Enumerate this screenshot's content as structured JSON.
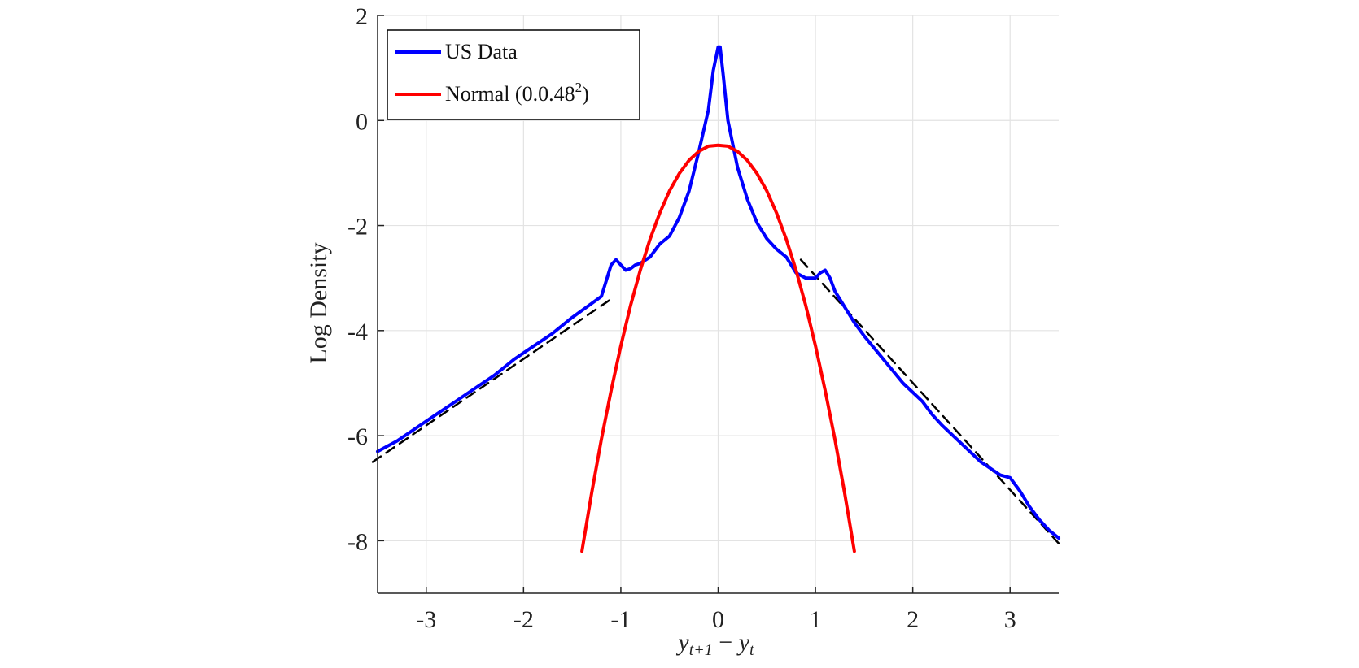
{
  "chart_data": {
    "type": "line",
    "xlabel": "y_{t+1} − y_t",
    "xlabel_parts": {
      "y1": "y",
      "sub1": "t+1",
      "minus": " − ",
      "y2": "y",
      "sub2": "t"
    },
    "ylabel": "Log Density",
    "xlim": [
      -3.5,
      3.5
    ],
    "ylim": [
      -9,
      2
    ],
    "xticks": [
      -3,
      -2,
      -1,
      0,
      1,
      2,
      3
    ],
    "xtick_labels": [
      "-3",
      "-2",
      "-1",
      "0",
      "1",
      "2",
      "3"
    ],
    "yticks": [
      -8,
      -6,
      -4,
      -2,
      0,
      2
    ],
    "ytick_labels": [
      "-8",
      "-6",
      "-4",
      "-2",
      "0",
      "2"
    ],
    "grid": true,
    "legend": {
      "placement": "top-left",
      "entries": [
        {
          "label": "US Data",
          "color": "#0000ff"
        },
        {
          "label": "Normal (0.0.48",
          "superscript": "2",
          "suffix": ")",
          "color": "#ff0000"
        }
      ]
    },
    "series": [
      {
        "name": "US Data",
        "color": "#0000ff",
        "style": "solid",
        "x": [
          -3.5,
          -3.3,
          -3.1,
          -2.9,
          -2.7,
          -2.5,
          -2.3,
          -2.1,
          -1.9,
          -1.7,
          -1.5,
          -1.35,
          -1.2,
          -1.1,
          -1.05,
          -1.0,
          -0.95,
          -0.9,
          -0.85,
          -0.8,
          -0.7,
          -0.6,
          -0.5,
          -0.4,
          -0.3,
          -0.2,
          -0.1,
          -0.05,
          0.0,
          0.02,
          0.05,
          0.1,
          0.2,
          0.3,
          0.4,
          0.5,
          0.6,
          0.7,
          0.8,
          0.9,
          1.0,
          1.05,
          1.1,
          1.15,
          1.2,
          1.3,
          1.4,
          1.5,
          1.7,
          1.9,
          2.1,
          2.2,
          2.3,
          2.5,
          2.7,
          2.9,
          3.0,
          3.1,
          3.2,
          3.3,
          3.4,
          3.5
        ],
        "y": [
          -6.3,
          -6.1,
          -5.85,
          -5.6,
          -5.35,
          -5.1,
          -4.85,
          -4.55,
          -4.3,
          -4.05,
          -3.75,
          -3.55,
          -3.35,
          -2.75,
          -2.65,
          -2.75,
          -2.85,
          -2.82,
          -2.75,
          -2.72,
          -2.6,
          -2.35,
          -2.2,
          -1.85,
          -1.35,
          -0.6,
          0.2,
          0.95,
          1.4,
          1.4,
          0.9,
          0.0,
          -0.9,
          -1.5,
          -1.95,
          -2.25,
          -2.45,
          -2.6,
          -2.9,
          -3.0,
          -3.0,
          -2.9,
          -2.85,
          -3.0,
          -3.25,
          -3.55,
          -3.85,
          -4.1,
          -4.55,
          -5.0,
          -5.35,
          -5.6,
          -5.8,
          -6.15,
          -6.5,
          -6.75,
          -6.8,
          -7.05,
          -7.35,
          -7.6,
          -7.8,
          -7.95
        ]
      },
      {
        "name": "Normal (0.0.48²)",
        "color": "#ff0000",
        "style": "solid",
        "x": [
          -1.4,
          -1.3,
          -1.2,
          -1.1,
          -1.0,
          -0.9,
          -0.8,
          -0.7,
          -0.6,
          -0.5,
          -0.4,
          -0.3,
          -0.2,
          -0.1,
          0.0,
          0.1,
          0.2,
          0.3,
          0.4,
          0.5,
          0.6,
          0.7,
          0.8,
          0.9,
          1.0,
          1.1,
          1.2,
          1.3,
          1.4
        ],
        "y": [
          -8.2,
          -7.09,
          -6.07,
          -5.14,
          -4.29,
          -3.52,
          -2.85,
          -2.26,
          -1.76,
          -1.34,
          -1.01,
          -0.76,
          -0.59,
          -0.49,
          -0.47,
          -0.49,
          -0.59,
          -0.76,
          -1.01,
          -1.34,
          -1.76,
          -2.26,
          -2.85,
          -3.52,
          -4.29,
          -5.14,
          -6.07,
          -7.09,
          -8.2
        ]
      },
      {
        "name": "left tail fit",
        "color": "#000000",
        "style": "dashed",
        "x": [
          -3.55,
          -1.1
        ],
        "y": [
          -6.5,
          -3.4
        ]
      },
      {
        "name": "right tail fit",
        "color": "#000000",
        "style": "dashed",
        "x": [
          0.85,
          3.5
        ],
        "y": [
          -2.65,
          -8.05
        ]
      }
    ]
  }
}
